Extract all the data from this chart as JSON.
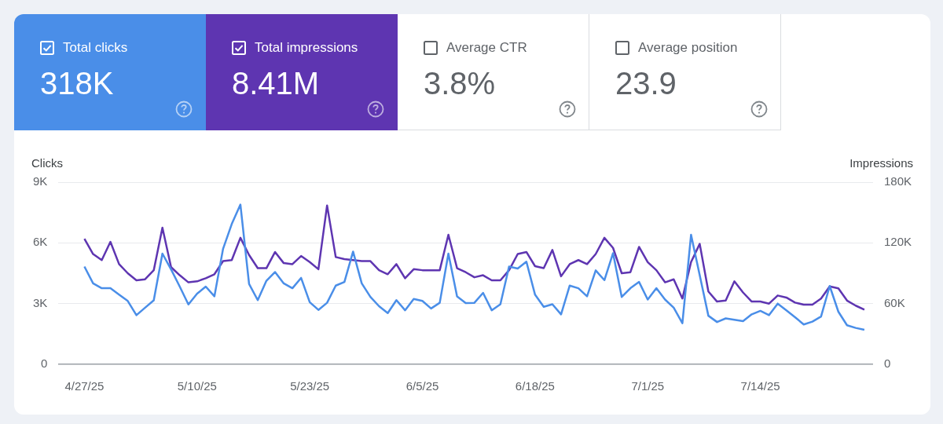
{
  "chart_data": [
    {
      "type": "other",
      "annotations": [
        "Total clicks",
        "318K",
        "Total impressions",
        "8.41M",
        "Average CTR",
        "3.8%",
        "Average position",
        "23.9"
      ]
    },
    {
      "type": "line",
      "ylabel": "Clicks",
      "y2label": "Impressions",
      "grid": "y",
      "legend": false,
      "marker": "none",
      "line_style": "solid",
      "x": [
        "2025-04-27",
        "2025-04-28",
        "2025-04-29",
        "2025-04-30",
        "2025-05-01",
        "2025-05-02",
        "2025-05-03",
        "2025-05-04",
        "2025-05-05",
        "2025-05-06",
        "2025-05-07",
        "2025-05-08",
        "2025-05-09",
        "2025-05-10",
        "2025-05-11",
        "2025-05-12",
        "2025-05-13",
        "2025-05-14",
        "2025-05-15",
        "2025-05-16",
        "2025-05-17",
        "2025-05-18",
        "2025-05-19",
        "2025-05-20",
        "2025-05-21",
        "2025-05-22",
        "2025-05-23",
        "2025-05-24",
        "2025-05-25",
        "2025-05-26",
        "2025-05-27",
        "2025-05-28",
        "2025-05-29",
        "2025-05-30",
        "2025-05-31",
        "2025-06-01",
        "2025-06-02",
        "2025-06-03",
        "2025-06-04",
        "2025-06-05",
        "2025-06-06",
        "2025-06-07",
        "2025-06-08",
        "2025-06-09",
        "2025-06-10",
        "2025-06-11",
        "2025-06-12",
        "2025-06-13",
        "2025-06-14",
        "2025-06-15",
        "2025-06-16",
        "2025-06-17",
        "2025-06-18",
        "2025-06-19",
        "2025-06-20",
        "2025-06-21",
        "2025-06-22",
        "2025-06-23",
        "2025-06-24",
        "2025-06-25",
        "2025-06-26",
        "2025-06-27",
        "2025-06-28",
        "2025-06-29",
        "2025-06-30",
        "2025-07-01",
        "2025-07-02",
        "2025-07-03",
        "2025-07-04",
        "2025-07-05",
        "2025-07-06",
        "2025-07-07",
        "2025-07-08",
        "2025-07-09",
        "2025-07-10",
        "2025-07-11",
        "2025-07-12",
        "2025-07-13",
        "2025-07-14",
        "2025-07-15",
        "2025-07-16",
        "2025-07-17",
        "2025-07-18",
        "2025-07-19",
        "2025-07-20",
        "2025-07-21",
        "2025-07-22",
        "2025-07-23",
        "2025-07-24",
        "2025-07-25",
        "2025-07-26"
      ],
      "series": [
        {
          "color": "#4a8ee8",
          "values": [
            4830,
            4000,
            3760,
            3760,
            3440,
            3130,
            2430,
            2800,
            3160,
            5470,
            4690,
            3840,
            2960,
            3490,
            3840,
            3360,
            5710,
            6930,
            7890,
            3970,
            3170,
            4130,
            4560,
            4000,
            3760,
            4270,
            3070,
            2690,
            3040,
            3890,
            4070,
            5570,
            4000,
            3330,
            2870,
            2530,
            3170,
            2670,
            3230,
            3130,
            2760,
            3040,
            5470,
            3360,
            3030,
            3040,
            3530,
            2670,
            2970,
            4830,
            4730,
            5070,
            3440,
            2840,
            2970,
            2470,
            3890,
            3760,
            3360,
            4640,
            4160,
            5490,
            3330,
            3760,
            4070,
            3200,
            3760,
            3200,
            2800,
            2030,
            6400,
            4400,
            2400,
            2090,
            2270,
            2200,
            2130,
            2470,
            2640,
            2430,
            3000,
            2670,
            2330,
            1970,
            2110,
            2360,
            3870,
            2600,
            1930,
            1800,
            1710
          ]
        },
        {
          "color": "#5e35b1",
          "axis": "y2",
          "values": [
            124000,
            109000,
            103000,
            121000,
            99000,
            90000,
            83000,
            84000,
            93000,
            135000,
            96000,
            88000,
            81000,
            82000,
            85000,
            89000,
            102000,
            103000,
            125000,
            108000,
            95000,
            95000,
            111000,
            100000,
            99000,
            107000,
            101000,
            94000,
            157000,
            106000,
            104000,
            103000,
            102000,
            102000,
            93000,
            89000,
            99000,
            85000,
            94000,
            93000,
            93000,
            93000,
            128000,
            95000,
            91000,
            86000,
            88000,
            83000,
            83000,
            93000,
            109000,
            111000,
            97000,
            95000,
            113000,
            87000,
            99000,
            103000,
            99000,
            109000,
            125000,
            115000,
            90000,
            91000,
            116000,
            101000,
            93000,
            81000,
            84000,
            65000,
            101000,
            119000,
            72000,
            62000,
            63000,
            82000,
            71000,
            62000,
            62000,
            60000,
            68000,
            66000,
            61000,
            59000,
            59000,
            65000,
            77000,
            75000,
            63000,
            58000,
            54000
          ]
        }
      ],
      "xlim": [
        "2025-04-24",
        "2025-07-27"
      ],
      "xticks": [
        {
          "value": "2025-04-27",
          "label": "4/27/25"
        },
        {
          "value": "2025-05-10",
          "label": "5/10/25"
        },
        {
          "value": "2025-05-23",
          "label": "5/23/25"
        },
        {
          "value": "2025-06-05",
          "label": "6/5/25"
        },
        {
          "value": "2025-06-18",
          "label": "6/18/25"
        },
        {
          "value": "2025-07-01",
          "label": "7/1/25"
        },
        {
          "value": "2025-07-14",
          "label": "7/14/25"
        }
      ],
      "ylim": [
        0,
        9000
      ],
      "yticks": [
        0,
        {
          "value": 3000,
          "label": "3K"
        },
        {
          "value": 6000,
          "label": "6K"
        },
        {
          "value": 9000,
          "label": "9K"
        }
      ],
      "y2lim": [
        0,
        180000
      ],
      "y2ticks": [
        0,
        {
          "value": 60000,
          "label": "60K"
        },
        {
          "value": 120000,
          "label": "120K"
        },
        {
          "value": 180000,
          "label": "180K"
        }
      ]
    }
  ]
}
